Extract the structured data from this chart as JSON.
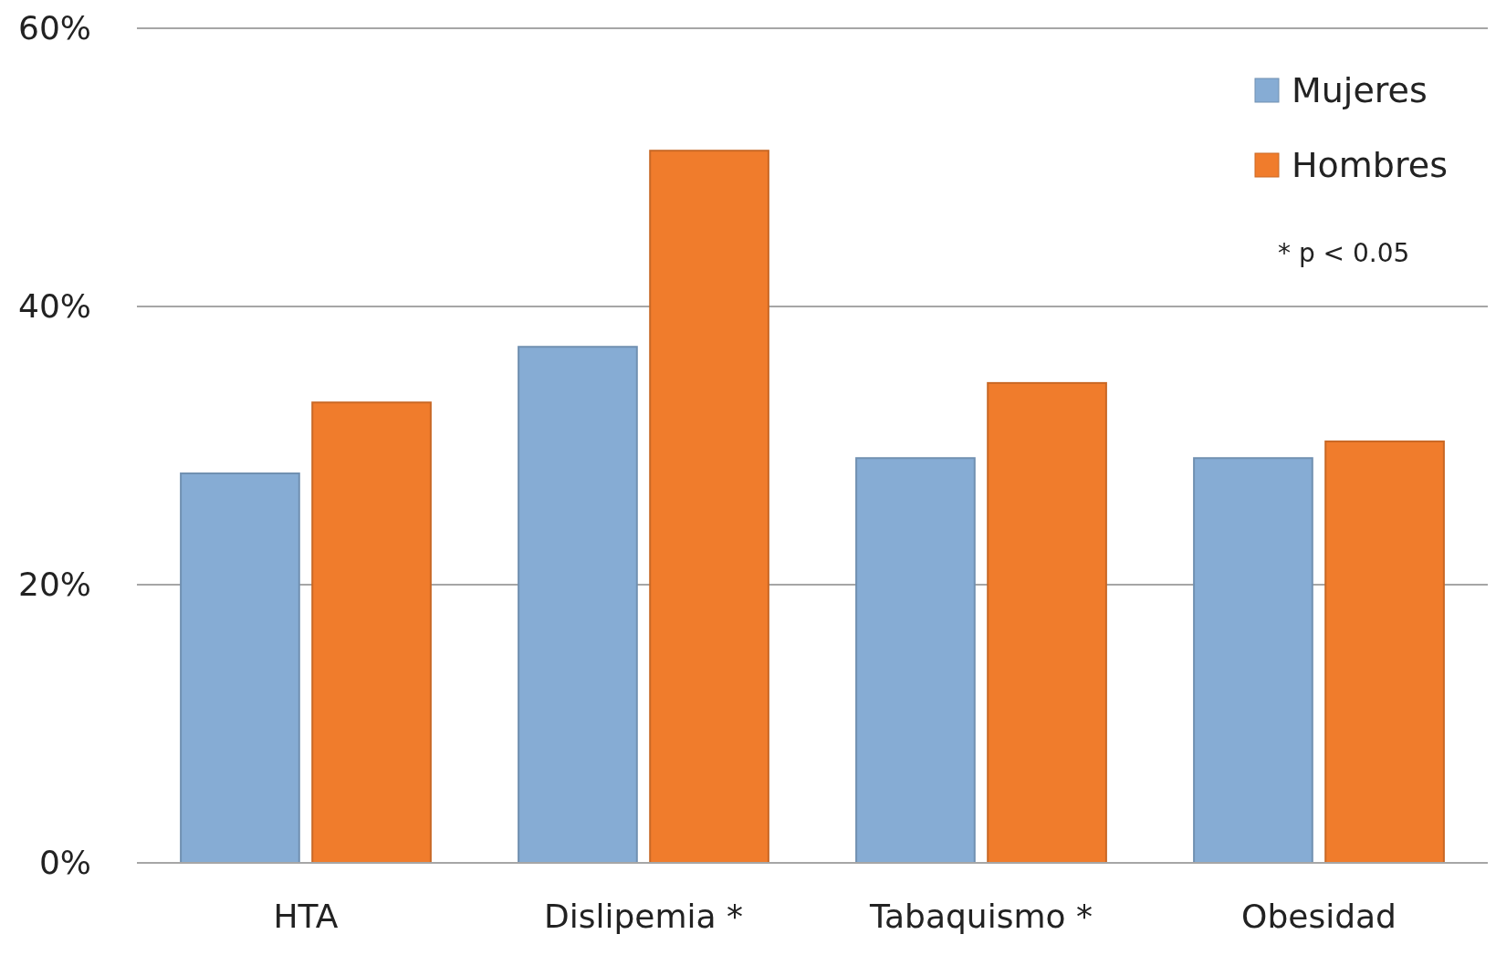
{
  "chart_data": {
    "type": "bar",
    "categories": [
      "HTA",
      "Dislipemia *",
      "Tabaquismo *",
      "Obesidad"
    ],
    "series": [
      {
        "name": "Mujeres",
        "color": "#86acd4",
        "values": [
          28.0,
          37.1,
          29.1,
          29.1
        ]
      },
      {
        "name": "Hombres",
        "color": "#f07c2c",
        "values": [
          33.1,
          51.2,
          34.5,
          30.3
        ]
      }
    ],
    "ylim": [
      0,
      60
    ],
    "yticks": [
      {
        "value": 0,
        "label": "0%"
      },
      {
        "value": 20,
        "label": "20%"
      },
      {
        "value": 40,
        "label": "40%"
      },
      {
        "value": 60,
        "label": "60%"
      }
    ],
    "grid": "y",
    "legend": "top right",
    "annotations": [
      "* p < 0.05"
    ]
  }
}
